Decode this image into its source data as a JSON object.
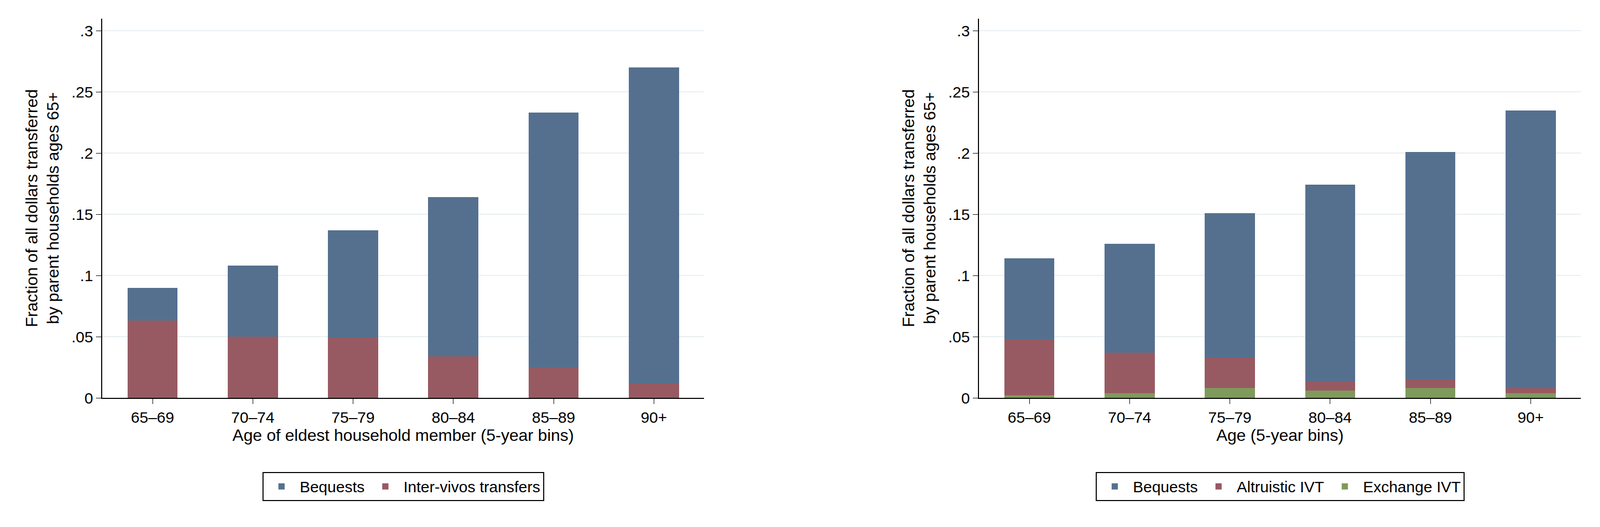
{
  "chart_data": [
    {
      "type": "bar",
      "stacked": true,
      "grid": true,
      "legend": "bottom",
      "x_label": "Age of eldest household member (5-year bins)",
      "y_label": [
        "Fraction of all dollars transferred",
        "by parent households ages 65+"
      ],
      "categories": [
        "65–69",
        "70–74",
        "75–79",
        "80–84",
        "85–89",
        "90+"
      ],
      "series": [
        {
          "name": "Inter-vivos transfers",
          "color": "#975a62",
          "values": [
            0.063,
            0.05,
            0.049,
            0.034,
            0.025,
            0.012
          ]
        },
        {
          "name": "Bequests",
          "color": "#55708f",
          "values": [
            0.027,
            0.058,
            0.088,
            0.13,
            0.208,
            0.258
          ]
        }
      ],
      "ylim": [
        0,
        0.31
      ],
      "yticks": [
        0,
        {
          "value": 0.05,
          "label": ".05"
        },
        {
          "value": 0.1,
          "label": ".1"
        },
        {
          "value": 0.15,
          "label": ".15"
        },
        {
          "value": 0.2,
          "label": ".2"
        },
        {
          "value": 0.25,
          "label": ".25"
        },
        {
          "value": 0.3,
          "label": ".3"
        }
      ]
    },
    {
      "type": "bar",
      "stacked": true,
      "grid": true,
      "legend": "bottom",
      "x_label": "Age (5-year bins)",
      "y_label": [
        "Fraction of all dollars transferred",
        "by parent households ages 65+"
      ],
      "categories": [
        "65–69",
        "70–74",
        "75–79",
        "80–84",
        "85–89",
        "90+"
      ],
      "series": [
        {
          "name": "Exchange IVT",
          "color": "#7f9a5c",
          "values": [
            0.002,
            0.004,
            0.008,
            0.006,
            0.008,
            0.004
          ]
        },
        {
          "name": "Altruistic IVT",
          "color": "#975a62",
          "values": [
            0.046,
            0.033,
            0.025,
            0.007,
            0.007,
            0.004
          ]
        },
        {
          "name": "Bequests",
          "color": "#55708f",
          "values": [
            0.066,
            0.089,
            0.118,
            0.161,
            0.186,
            0.227
          ]
        }
      ],
      "ylim": [
        0,
        0.31
      ],
      "yticks": [
        0,
        {
          "value": 0.05,
          "label": ".05"
        },
        {
          "value": 0.1,
          "label": ".1"
        },
        {
          "value": 0.15,
          "label": ".15"
        },
        {
          "value": 0.2,
          "label": ".2"
        },
        {
          "value": 0.25,
          "label": ".25"
        },
        {
          "value": 0.3,
          "label": ".3"
        }
      ]
    }
  ]
}
